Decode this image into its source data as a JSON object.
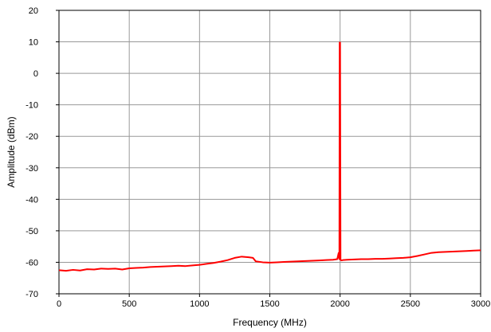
{
  "chart_data": {
    "type": "line",
    "title": "",
    "xlabel": "Frequency (MHz)",
    "ylabel": "Amplitude (dBm)",
    "xlim": [
      0,
      3000
    ],
    "ylim": [
      -70,
      20
    ],
    "xticks": [
      0,
      500,
      1000,
      1500,
      2000,
      2500,
      3000
    ],
    "yticks": [
      -70,
      -60,
      -50,
      -40,
      -30,
      -20,
      -10,
      0,
      10,
      20
    ],
    "xtick_labels": [
      "0",
      "500",
      "1000",
      "1500",
      "2000",
      "2500",
      "3000"
    ],
    "ytick_labels": [
      "-70",
      "-60",
      "-50",
      "-40",
      "-30",
      "-20",
      "-10",
      "0",
      "10",
      "20"
    ],
    "grid": true,
    "series_color": "#ff0000",
    "series": [
      {
        "x": [
          0,
          50,
          100,
          150,
          200,
          250,
          300,
          350,
          400,
          450,
          500,
          550,
          600,
          650,
          700,
          750,
          800,
          850,
          900,
          950,
          1000,
          1050,
          1100,
          1150,
          1200,
          1250,
          1300,
          1350,
          1380,
          1400,
          1450,
          1500,
          1550,
          1600,
          1650,
          1700,
          1750,
          1800,
          1850,
          1900,
          1950,
          1980,
          1990,
          1995,
          1997,
          2000,
          2003,
          2005,
          2010,
          2020,
          2050,
          2100,
          2150,
          2200,
          2250,
          2300,
          2350,
          2400,
          2450,
          2500,
          2550,
          2600,
          2650,
          2700,
          2750,
          2800,
          2850,
          2900,
          2950,
          3000
        ],
        "y": [
          -62.5,
          -62.7,
          -62.4,
          -62.6,
          -62.2,
          -62.3,
          -62.0,
          -62.1,
          -62.0,
          -62.3,
          -61.9,
          -61.8,
          -61.7,
          -61.5,
          -61.4,
          -61.3,
          -61.2,
          -61.1,
          -61.2,
          -61.0,
          -60.8,
          -60.5,
          -60.2,
          -59.8,
          -59.3,
          -58.6,
          -58.2,
          -58.4,
          -58.6,
          -59.7,
          -60.0,
          -60.1,
          -60.0,
          -59.9,
          -59.8,
          -59.7,
          -59.6,
          -59.5,
          -59.4,
          -59.3,
          -59.2,
          -59.0,
          -57.0,
          -59.0,
          9.8,
          9.8,
          -59.0,
          -59.3,
          -59.4,
          -59.3,
          -59.2,
          -59.1,
          -59.0,
          -59.0,
          -58.9,
          -58.9,
          -58.8,
          -58.7,
          -58.6,
          -58.4,
          -58.0,
          -57.5,
          -57.0,
          -56.8,
          -56.7,
          -56.6,
          -56.5,
          -56.4,
          -56.3,
          -56.2
        ]
      }
    ]
  }
}
